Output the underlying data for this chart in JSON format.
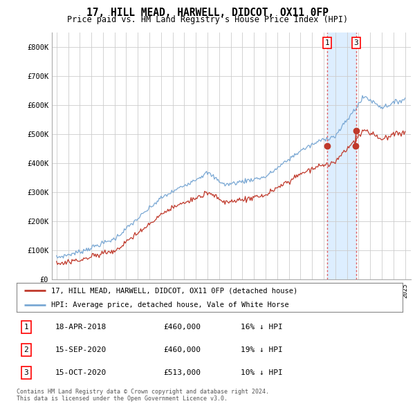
{
  "title": "17, HILL MEAD, HARWELL, DIDCOT, OX11 0FP",
  "subtitle": "Price paid vs. HM Land Registry's House Price Index (HPI)",
  "ylim": [
    0,
    850000
  ],
  "yticks": [
    0,
    100000,
    200000,
    300000,
    400000,
    500000,
    600000,
    700000,
    800000
  ],
  "ytick_labels": [
    "£0",
    "£100K",
    "£200K",
    "£300K",
    "£400K",
    "£500K",
    "£600K",
    "£700K",
    "£800K"
  ],
  "hpi_color": "#7aa8d4",
  "price_color": "#c0392b",
  "vline_color": "#e06060",
  "shade_color": "#ddeeff",
  "transactions": [
    {
      "label": "1",
      "date": 2018.29,
      "price": 460000
    },
    {
      "label": "2",
      "date": 2020.71,
      "price": 460000
    },
    {
      "label": "3",
      "date": 2020.79,
      "price": 513000
    }
  ],
  "show_label_at_top": [
    true,
    false,
    true
  ],
  "legend_entries": [
    "17, HILL MEAD, HARWELL, DIDCOT, OX11 0FP (detached house)",
    "HPI: Average price, detached house, Vale of White Horse"
  ],
  "table_rows": [
    {
      "num": "1",
      "date": "18-APR-2018",
      "price": "£460,000",
      "hpi": "16% ↓ HPI"
    },
    {
      "num": "2",
      "date": "15-SEP-2020",
      "price": "£460,000",
      "hpi": "19% ↓ HPI"
    },
    {
      "num": "3",
      "date": "15-OCT-2020",
      "price": "£513,000",
      "hpi": "10% ↓ HPI"
    }
  ],
  "footnote": "Contains HM Land Registry data © Crown copyright and database right 2024.\nThis data is licensed under the Open Government Licence v3.0.",
  "background_color": "#ffffff",
  "grid_color": "#cccccc"
}
